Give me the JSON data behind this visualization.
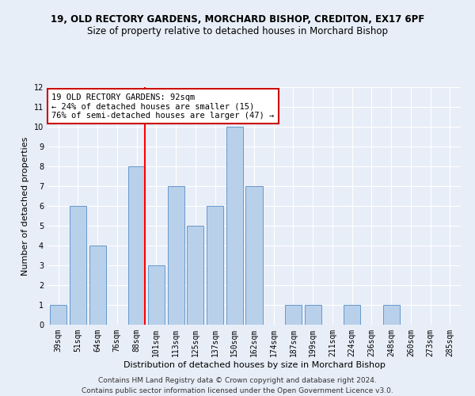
{
  "title_line1": "19, OLD RECTORY GARDENS, MORCHARD BISHOP, CREDITON, EX17 6PF",
  "title_line2": "Size of property relative to detached houses in Morchard Bishop",
  "xlabel": "Distribution of detached houses by size in Morchard Bishop",
  "ylabel": "Number of detached properties",
  "categories": [
    "39sqm",
    "51sqm",
    "64sqm",
    "76sqm",
    "88sqm",
    "101sqm",
    "113sqm",
    "125sqm",
    "137sqm",
    "150sqm",
    "162sqm",
    "174sqm",
    "187sqm",
    "199sqm",
    "211sqm",
    "224sqm",
    "236sqm",
    "248sqm",
    "260sqm",
    "273sqm",
    "285sqm"
  ],
  "values": [
    1,
    6,
    4,
    0,
    8,
    3,
    7,
    5,
    6,
    10,
    7,
    0,
    1,
    1,
    0,
    1,
    0,
    1,
    0,
    0,
    0
  ],
  "bar_color": "#b8d0ea",
  "bar_edgecolor": "#6699cc",
  "red_line_index": 4,
  "annotation_text": "19 OLD RECTORY GARDENS: 92sqm\n← 24% of detached houses are smaller (15)\n76% of semi-detached houses are larger (47) →",
  "annotation_box_color": "#ffffff",
  "annotation_box_edgecolor": "#cc0000",
  "ylim": [
    0,
    12
  ],
  "yticks": [
    0,
    1,
    2,
    3,
    4,
    5,
    6,
    7,
    8,
    9,
    10,
    11,
    12
  ],
  "footer1": "Contains HM Land Registry data © Crown copyright and database right 2024.",
  "footer2": "Contains public sector information licensed under the Open Government Licence v3.0.",
  "background_color": "#e8eef8",
  "grid_color": "#ffffff",
  "title1_fontsize": 8.5,
  "title2_fontsize": 8.5,
  "axis_label_fontsize": 8,
  "tick_fontsize": 7,
  "annotation_fontsize": 7.5,
  "footer_fontsize": 6.5
}
